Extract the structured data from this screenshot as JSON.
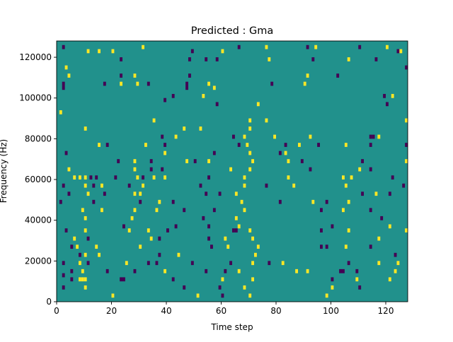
{
  "chart_data": {
    "type": "heatmap",
    "title": "Predicted : Gma",
    "xlabel": "Time step",
    "ylabel": "Frequency (Hz)",
    "xlim": [
      0,
      128
    ],
    "ylim": [
      0,
      128000
    ],
    "x_ticks": [
      0,
      20,
      40,
      60,
      80,
      100,
      120
    ],
    "y_ticks": [
      0,
      20000,
      40000,
      60000,
      80000,
      100000,
      120000
    ],
    "y_tick_labels": [
      "0",
      "20000",
      "40000",
      "60000",
      "80000",
      "100000",
      "120000"
    ],
    "grid": false,
    "rows": 64,
    "columns": 128,
    "colormap": "viridis",
    "background_value": 0.5,
    "colors": {
      "low": "#440154",
      "mid": "#21918c",
      "high": "#fde725"
    },
    "cells": [
      {
        "t": 2,
        "f": 124000,
        "v": 0
      },
      {
        "t": 11,
        "f": 122000,
        "v": 1
      },
      {
        "t": 15,
        "f": 122000,
        "v": 1
      },
      {
        "t": 20,
        "f": 122000,
        "v": 1
      },
      {
        "t": 31,
        "f": 124000,
        "v": 1
      },
      {
        "t": 49,
        "f": 122000,
        "v": 0
      },
      {
        "t": 60,
        "f": 122000,
        "v": 1
      },
      {
        "t": 66,
        "f": 124000,
        "v": 0
      },
      {
        "t": 76,
        "f": 124000,
        "v": 1
      },
      {
        "t": 91,
        "f": 124000,
        "v": 0
      },
      {
        "t": 94,
        "f": 124000,
        "v": 1
      },
      {
        "t": 110,
        "f": 124000,
        "v": 0
      },
      {
        "t": 120,
        "f": 124000,
        "v": 1
      },
      {
        "t": 124,
        "f": 122000,
        "v": 0
      },
      {
        "t": 125,
        "f": 122000,
        "v": 1
      },
      {
        "t": 23,
        "f": 118000,
        "v": 0
      },
      {
        "t": 48,
        "f": 118000,
        "v": 0
      },
      {
        "t": 54,
        "f": 118000,
        "v": 0
      },
      {
        "t": 58,
        "f": 118000,
        "v": 0
      },
      {
        "t": 77,
        "f": 118000,
        "v": 1
      },
      {
        "t": 93,
        "f": 118000,
        "v": 0
      },
      {
        "t": 106,
        "f": 118000,
        "v": 1
      },
      {
        "t": 116,
        "f": 118000,
        "v": 0
      },
      {
        "t": 3,
        "f": 114000,
        "v": 1
      },
      {
        "t": 127,
        "f": 114000,
        "v": 0
      },
      {
        "t": 4,
        "f": 110000,
        "v": 1
      },
      {
        "t": 23,
        "f": 110000,
        "v": 0
      },
      {
        "t": 28,
        "f": 110000,
        "v": 1
      },
      {
        "t": 48,
        "f": 110000,
        "v": 0
      },
      {
        "t": 91,
        "f": 110000,
        "v": 1
      },
      {
        "t": 102,
        "f": 110000,
        "v": 0
      },
      {
        "t": 2,
        "f": 106000,
        "v": 0
      },
      {
        "t": 17,
        "f": 106000,
        "v": 0
      },
      {
        "t": 23,
        "f": 106000,
        "v": 1
      },
      {
        "t": 29,
        "f": 106000,
        "v": 1
      },
      {
        "t": 33,
        "f": 106000,
        "v": 0
      },
      {
        "t": 47,
        "f": 106000,
        "v": 0
      },
      {
        "t": 55,
        "f": 106000,
        "v": 1
      },
      {
        "t": 78,
        "f": 106000,
        "v": 0
      },
      {
        "t": 90,
        "f": 106000,
        "v": 1
      },
      {
        "t": 2,
        "f": 104000,
        "v": 0
      },
      {
        "t": 47,
        "f": 104000,
        "v": 0
      },
      {
        "t": 57,
        "f": 104000,
        "v": 1
      },
      {
        "t": 42,
        "f": 100000,
        "v": 0
      },
      {
        "t": 53,
        "f": 100000,
        "v": 1
      },
      {
        "t": 119,
        "f": 100000,
        "v": 0
      },
      {
        "t": 122,
        "f": 100000,
        "v": 1
      },
      {
        "t": 39,
        "f": 98000,
        "v": 0
      },
      {
        "t": 58,
        "f": 96000,
        "v": 0
      },
      {
        "t": 73,
        "f": 96000,
        "v": 1
      },
      {
        "t": 120,
        "f": 96000,
        "v": 0
      },
      {
        "t": 1,
        "f": 92000,
        "v": 1
      },
      {
        "t": 35,
        "f": 88000,
        "v": 1
      },
      {
        "t": 70,
        "f": 88000,
        "v": 1
      },
      {
        "t": 76,
        "f": 88000,
        "v": 1
      },
      {
        "t": 127,
        "f": 88000,
        "v": 1
      },
      {
        "t": 10,
        "f": 84000,
        "v": 1
      },
      {
        "t": 46,
        "f": 84000,
        "v": 1
      },
      {
        "t": 52,
        "f": 84000,
        "v": 1
      },
      {
        "t": 70,
        "f": 84000,
        "v": 1
      },
      {
        "t": 38,
        "f": 80000,
        "v": 0
      },
      {
        "t": 43,
        "f": 80000,
        "v": 1
      },
      {
        "t": 64,
        "f": 80000,
        "v": 0
      },
      {
        "t": 68,
        "f": 80000,
        "v": 1
      },
      {
        "t": 79,
        "f": 80000,
        "v": 1
      },
      {
        "t": 92,
        "f": 80000,
        "v": 1
      },
      {
        "t": 114,
        "f": 80000,
        "v": 0
      },
      {
        "t": 115,
        "f": 80000,
        "v": 0
      },
      {
        "t": 117,
        "f": 80000,
        "v": 1
      },
      {
        "t": 15,
        "f": 76000,
        "v": 1
      },
      {
        "t": 18,
        "f": 76000,
        "v": 0
      },
      {
        "t": 32,
        "f": 76000,
        "v": 1
      },
      {
        "t": 39,
        "f": 76000,
        "v": 0
      },
      {
        "t": 66,
        "f": 76000,
        "v": 0
      },
      {
        "t": 69,
        "f": 76000,
        "v": 1
      },
      {
        "t": 83,
        "f": 76000,
        "v": 0
      },
      {
        "t": 88,
        "f": 76000,
        "v": 1
      },
      {
        "t": 95,
        "f": 76000,
        "v": 0
      },
      {
        "t": 105,
        "f": 76000,
        "v": 1
      },
      {
        "t": 114,
        "f": 76000,
        "v": 0
      },
      {
        "t": 127,
        "f": 76000,
        "v": 0
      },
      {
        "t": 3,
        "f": 72000,
        "v": 0
      },
      {
        "t": 39,
        "f": 72000,
        "v": 1
      },
      {
        "t": 57,
        "f": 72000,
        "v": 0
      },
      {
        "t": 70,
        "f": 72000,
        "v": 1
      },
      {
        "t": 81,
        "f": 72000,
        "v": 0
      },
      {
        "t": 83,
        "f": 72000,
        "v": 1
      },
      {
        "t": 22,
        "f": 68000,
        "v": 0
      },
      {
        "t": 28,
        "f": 68000,
        "v": 1
      },
      {
        "t": 34,
        "f": 68000,
        "v": 0
      },
      {
        "t": 47,
        "f": 68000,
        "v": 1
      },
      {
        "t": 50,
        "f": 68000,
        "v": 0
      },
      {
        "t": 55,
        "f": 68000,
        "v": 1
      },
      {
        "t": 71,
        "f": 68000,
        "v": 1
      },
      {
        "t": 84,
        "f": 68000,
        "v": 1
      },
      {
        "t": 89,
        "f": 68000,
        "v": 0
      },
      {
        "t": 111,
        "f": 68000,
        "v": 0
      },
      {
        "t": 127,
        "f": 68000,
        "v": 1
      },
      {
        "t": 4,
        "f": 64000,
        "v": 1
      },
      {
        "t": 28,
        "f": 64000,
        "v": 1
      },
      {
        "t": 34,
        "f": 64000,
        "v": 0
      },
      {
        "t": 38,
        "f": 64000,
        "v": 0
      },
      {
        "t": 63,
        "f": 64000,
        "v": 1
      },
      {
        "t": 70,
        "f": 64000,
        "v": 1
      },
      {
        "t": 92,
        "f": 64000,
        "v": 0
      },
      {
        "t": 110,
        "f": 64000,
        "v": 1
      },
      {
        "t": 114,
        "f": 64000,
        "v": 0
      },
      {
        "t": 6,
        "f": 60000,
        "v": 1
      },
      {
        "t": 8,
        "f": 60000,
        "v": 1
      },
      {
        "t": 10,
        "f": 60000,
        "v": 1
      },
      {
        "t": 12,
        "f": 60000,
        "v": 0
      },
      {
        "t": 14,
        "f": 60000,
        "v": 0
      },
      {
        "t": 21,
        "f": 60000,
        "v": 0
      },
      {
        "t": 29,
        "f": 60000,
        "v": 1
      },
      {
        "t": 31,
        "f": 60000,
        "v": 0
      },
      {
        "t": 35,
        "f": 60000,
        "v": 1
      },
      {
        "t": 39,
        "f": 60000,
        "v": 1
      },
      {
        "t": 55,
        "f": 60000,
        "v": 0
      },
      {
        "t": 68,
        "f": 60000,
        "v": 1
      },
      {
        "t": 84,
        "f": 60000,
        "v": 1
      },
      {
        "t": 104,
        "f": 60000,
        "v": 1
      },
      {
        "t": 107,
        "f": 60000,
        "v": 1
      },
      {
        "t": 122,
        "f": 60000,
        "v": 0
      },
      {
        "t": 2,
        "f": 56000,
        "v": 0
      },
      {
        "t": 10,
        "f": 56000,
        "v": 1
      },
      {
        "t": 13,
        "f": 56000,
        "v": 0
      },
      {
        "t": 16,
        "f": 56000,
        "v": 1
      },
      {
        "t": 26,
        "f": 56000,
        "v": 0
      },
      {
        "t": 31,
        "f": 56000,
        "v": 1
      },
      {
        "t": 52,
        "f": 56000,
        "v": 0
      },
      {
        "t": 68,
        "f": 56000,
        "v": 1
      },
      {
        "t": 76,
        "f": 56000,
        "v": 0
      },
      {
        "t": 86,
        "f": 56000,
        "v": 1
      },
      {
        "t": 105,
        "f": 56000,
        "v": 1
      },
      {
        "t": 126,
        "f": 56000,
        "v": 0
      },
      {
        "t": 4,
        "f": 52000,
        "v": 0
      },
      {
        "t": 11,
        "f": 52000,
        "v": 1
      },
      {
        "t": 17,
        "f": 52000,
        "v": 0
      },
      {
        "t": 28,
        "f": 52000,
        "v": 1
      },
      {
        "t": 30,
        "f": 52000,
        "v": 1
      },
      {
        "t": 54,
        "f": 52000,
        "v": 0
      },
      {
        "t": 59,
        "f": 52000,
        "v": 0
      },
      {
        "t": 65,
        "f": 52000,
        "v": 1
      },
      {
        "t": 111,
        "f": 52000,
        "v": 0
      },
      {
        "t": 116,
        "f": 52000,
        "v": 1
      },
      {
        "t": 121,
        "f": 52000,
        "v": 0
      },
      {
        "t": 1,
        "f": 48000,
        "v": 0
      },
      {
        "t": 13,
        "f": 48000,
        "v": 0
      },
      {
        "t": 30,
        "f": 48000,
        "v": 0
      },
      {
        "t": 37,
        "f": 48000,
        "v": 1
      },
      {
        "t": 42,
        "f": 48000,
        "v": 0
      },
      {
        "t": 67,
        "f": 48000,
        "v": 1
      },
      {
        "t": 81,
        "f": 48000,
        "v": 0
      },
      {
        "t": 93,
        "f": 48000,
        "v": 1
      },
      {
        "t": 98,
        "f": 48000,
        "v": 0
      },
      {
        "t": 106,
        "f": 48000,
        "v": 1
      },
      {
        "t": 9,
        "f": 44000,
        "v": 1
      },
      {
        "t": 16,
        "f": 44000,
        "v": 1
      },
      {
        "t": 28,
        "f": 44000,
        "v": 1
      },
      {
        "t": 36,
        "f": 44000,
        "v": 1
      },
      {
        "t": 46,
        "f": 44000,
        "v": 0
      },
      {
        "t": 57,
        "f": 44000,
        "v": 0
      },
      {
        "t": 68,
        "f": 44000,
        "v": 1
      },
      {
        "t": 96,
        "f": 44000,
        "v": 0
      },
      {
        "t": 104,
        "f": 44000,
        "v": 1
      },
      {
        "t": 114,
        "f": 44000,
        "v": 0
      },
      {
        "t": 10,
        "f": 40000,
        "v": 1
      },
      {
        "t": 27,
        "f": 40000,
        "v": 1
      },
      {
        "t": 53,
        "f": 40000,
        "v": 0
      },
      {
        "t": 65,
        "f": 40000,
        "v": 1
      },
      {
        "t": 118,
        "f": 40000,
        "v": 0
      },
      {
        "t": 24,
        "f": 36000,
        "v": 0
      },
      {
        "t": 43,
        "f": 36000,
        "v": 0
      },
      {
        "t": 55,
        "f": 36000,
        "v": 0
      },
      {
        "t": 66,
        "f": 36000,
        "v": 1
      },
      {
        "t": 100,
        "f": 36000,
        "v": 0
      },
      {
        "t": 121,
        "f": 36000,
        "v": 1
      },
      {
        "t": 3,
        "f": 34000,
        "v": 0
      },
      {
        "t": 10,
        "f": 34000,
        "v": 1
      },
      {
        "t": 26,
        "f": 34000,
        "v": 1
      },
      {
        "t": 33,
        "f": 34000,
        "v": 1
      },
      {
        "t": 40,
        "f": 34000,
        "v": 0
      },
      {
        "t": 64,
        "f": 34000,
        "v": 0
      },
      {
        "t": 65,
        "f": 34000,
        "v": 0
      },
      {
        "t": 70,
        "f": 34000,
        "v": 1
      },
      {
        "t": 96,
        "f": 34000,
        "v": 0
      },
      {
        "t": 106,
        "f": 34000,
        "v": 1
      },
      {
        "t": 127,
        "f": 34000,
        "v": 1
      },
      {
        "t": 6,
        "f": 30000,
        "v": 1
      },
      {
        "t": 11,
        "f": 30000,
        "v": 0
      },
      {
        "t": 34,
        "f": 30000,
        "v": 1
      },
      {
        "t": 37,
        "f": 30000,
        "v": 0
      },
      {
        "t": 55,
        "f": 30000,
        "v": 0
      },
      {
        "t": 61,
        "f": 30000,
        "v": 1
      },
      {
        "t": 71,
        "f": 30000,
        "v": 1
      },
      {
        "t": 117,
        "f": 30000,
        "v": 1
      },
      {
        "t": 5,
        "f": 26000,
        "v": 0
      },
      {
        "t": 7,
        "f": 26000,
        "v": 1
      },
      {
        "t": 14,
        "f": 26000,
        "v": 1
      },
      {
        "t": 30,
        "f": 26000,
        "v": 1
      },
      {
        "t": 56,
        "f": 26000,
        "v": 0
      },
      {
        "t": 62,
        "f": 26000,
        "v": 1
      },
      {
        "t": 73,
        "f": 26000,
        "v": 1
      },
      {
        "t": 96,
        "f": 26000,
        "v": 0
      },
      {
        "t": 98,
        "f": 26000,
        "v": 0
      },
      {
        "t": 105,
        "f": 26000,
        "v": 1
      },
      {
        "t": 114,
        "f": 26000,
        "v": 0
      },
      {
        "t": 8,
        "f": 22000,
        "v": 0
      },
      {
        "t": 10,
        "f": 22000,
        "v": 1
      },
      {
        "t": 15,
        "f": 22000,
        "v": 1
      },
      {
        "t": 37,
        "f": 22000,
        "v": 0
      },
      {
        "t": 44,
        "f": 22000,
        "v": 1
      },
      {
        "t": 72,
        "f": 22000,
        "v": 1
      },
      {
        "t": 123,
        "f": 22000,
        "v": 0
      },
      {
        "t": 2,
        "f": 18000,
        "v": 0
      },
      {
        "t": 8,
        "f": 18000,
        "v": 1
      },
      {
        "t": 11,
        "f": 18000,
        "v": 0
      },
      {
        "t": 25,
        "f": 18000,
        "v": 1
      },
      {
        "t": 33,
        "f": 18000,
        "v": 0
      },
      {
        "t": 36,
        "f": 18000,
        "v": 0
      },
      {
        "t": 49,
        "f": 18000,
        "v": 0
      },
      {
        "t": 63,
        "f": 18000,
        "v": 0
      },
      {
        "t": 71,
        "f": 18000,
        "v": 1
      },
      {
        "t": 77,
        "f": 18000,
        "v": 0
      },
      {
        "t": 82,
        "f": 18000,
        "v": 1
      },
      {
        "t": 106,
        "f": 18000,
        "v": 0
      },
      {
        "t": 117,
        "f": 18000,
        "v": 1
      },
      {
        "t": 124,
        "f": 18000,
        "v": 1
      },
      {
        "t": 5,
        "f": 14000,
        "v": 0
      },
      {
        "t": 9,
        "f": 14000,
        "v": 1
      },
      {
        "t": 18,
        "f": 14000,
        "v": 0
      },
      {
        "t": 28,
        "f": 14000,
        "v": 0
      },
      {
        "t": 39,
        "f": 14000,
        "v": 1
      },
      {
        "t": 54,
        "f": 14000,
        "v": 0
      },
      {
        "t": 61,
        "f": 14000,
        "v": 0
      },
      {
        "t": 66,
        "f": 14000,
        "v": 1
      },
      {
        "t": 87,
        "f": 14000,
        "v": 1
      },
      {
        "t": 91,
        "f": 14000,
        "v": 1
      },
      {
        "t": 103,
        "f": 14000,
        "v": 0
      },
      {
        "t": 104,
        "f": 14000,
        "v": 0
      },
      {
        "t": 109,
        "f": 14000,
        "v": 0
      },
      {
        "t": 123,
        "f": 14000,
        "v": 1
      },
      {
        "t": 2,
        "f": 12000,
        "v": 0
      },
      {
        "t": 5,
        "f": 10000,
        "v": 0
      },
      {
        "t": 8,
        "f": 10000,
        "v": 1
      },
      {
        "t": 9,
        "f": 10000,
        "v": 1
      },
      {
        "t": 10,
        "f": 10000,
        "v": 1
      },
      {
        "t": 23,
        "f": 10000,
        "v": 0
      },
      {
        "t": 24,
        "f": 10000,
        "v": 0
      },
      {
        "t": 42,
        "f": 10000,
        "v": 0
      },
      {
        "t": 60,
        "f": 10000,
        "v": 1
      },
      {
        "t": 71,
        "f": 10000,
        "v": 1
      },
      {
        "t": 100,
        "f": 10000,
        "v": 0
      },
      {
        "t": 109,
        "f": 10000,
        "v": 1
      },
      {
        "t": 121,
        "f": 10000,
        "v": 1
      },
      {
        "t": 2,
        "f": 6000,
        "v": 0
      },
      {
        "t": 10,
        "f": 6000,
        "v": 1
      },
      {
        "t": 46,
        "f": 6000,
        "v": 0
      },
      {
        "t": 59,
        "f": 6000,
        "v": 0
      },
      {
        "t": 68,
        "f": 6000,
        "v": 1
      },
      {
        "t": 100,
        "f": 6000,
        "v": 1
      },
      {
        "t": 110,
        "f": 6000,
        "v": 0
      },
      {
        "t": 20,
        "f": 2000,
        "v": 1
      },
      {
        "t": 51,
        "f": 2000,
        "v": 1
      },
      {
        "t": 60,
        "f": 2000,
        "v": 0
      },
      {
        "t": 70,
        "f": 2000,
        "v": 1
      },
      {
        "t": 98,
        "f": 2000,
        "v": 1
      }
    ]
  }
}
